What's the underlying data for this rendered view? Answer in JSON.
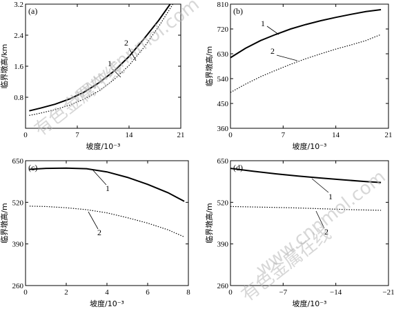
{
  "chart_data": [
    {
      "type": "line",
      "panel": "(a)",
      "xlabel": "坡度/10⁻³",
      "ylabel": "临界墩高/km",
      "xlim": [
        0,
        21
      ],
      "ylim": [
        0,
        3.2
      ],
      "xticks": [
        0,
        7,
        14,
        21
      ],
      "yticks": [
        0.8,
        1.6,
        2.4,
        3.2
      ],
      "xticklabels": [
        "0",
        "7",
        "14",
        "21"
      ],
      "yticklabels": [
        "0.8",
        "1.6",
        "2.4",
        "3.2"
      ],
      "series": [
        {
          "name": "1",
          "style": "solid",
          "x": [
            0.5,
            2,
            4,
            6,
            8,
            10,
            12,
            14,
            16,
            18,
            20
          ],
          "y": [
            0.45,
            0.52,
            0.62,
            0.76,
            0.94,
            1.18,
            1.48,
            1.85,
            2.3,
            2.78,
            3.32
          ]
        },
        {
          "name": "2",
          "style": "dotted",
          "x": [
            0.5,
            2,
            4,
            6,
            8,
            10,
            12,
            14,
            16,
            18,
            20
          ],
          "y": [
            0.33,
            0.39,
            0.48,
            0.6,
            0.76,
            0.97,
            1.26,
            1.62,
            2.08,
            2.62,
            3.22
          ]
        }
      ]
    },
    {
      "type": "line",
      "panel": "(b)",
      "xlabel": "坡度/10⁻³",
      "ylabel": "临界墩高/m",
      "xlim": [
        0,
        21
      ],
      "ylim": [
        360,
        810
      ],
      "xticks": [
        0,
        7,
        14,
        21
      ],
      "yticks": [
        360,
        450,
        540,
        630,
        720,
        810
      ],
      "xticklabels": [
        "0",
        "7",
        "14",
        "21"
      ],
      "yticklabels": [
        "360",
        "450",
        "540",
        "630",
        "720",
        "810"
      ],
      "series": [
        {
          "name": "1",
          "style": "solid",
          "x": [
            0,
            2,
            4,
            6,
            8,
            10,
            12,
            14,
            16,
            18,
            20
          ],
          "y": [
            616,
            650,
            678,
            700,
            720,
            736,
            750,
            762,
            773,
            783,
            790
          ]
        },
        {
          "name": "2",
          "style": "dotted",
          "x": [
            0,
            2,
            4,
            6,
            8,
            10,
            12,
            14,
            16,
            18,
            20
          ],
          "y": [
            490,
            520,
            547,
            570,
            592,
            612,
            630,
            647,
            662,
            678,
            700
          ]
        }
      ]
    },
    {
      "type": "line",
      "panel": "(c)",
      "xlabel": "坡度/10⁻³",
      "ylabel": "临界墩高/m",
      "xlim": [
        0,
        8
      ],
      "ylim": [
        260,
        650
      ],
      "xticks": [
        0,
        2,
        4,
        6,
        8
      ],
      "yticks": [
        260,
        390,
        520,
        650
      ],
      "xticklabels": [
        "0",
        "2",
        "4",
        "6",
        "8"
      ],
      "yticklabels": [
        "260",
        "390",
        "520",
        "650"
      ],
      "series": [
        {
          "name": "1",
          "style": "solid",
          "x": [
            0.2,
            1,
            2,
            3,
            4,
            5,
            6,
            7,
            7.8
          ],
          "y": [
            623,
            626,
            627,
            625,
            615,
            598,
            576,
            550,
            523
          ]
        },
        {
          "name": "2",
          "style": "dotted",
          "x": [
            0.2,
            1,
            2,
            3,
            4,
            5,
            6,
            7,
            7.8
          ],
          "y": [
            508,
            507,
            503,
            497,
            487,
            472,
            455,
            434,
            412
          ]
        }
      ]
    },
    {
      "type": "line",
      "panel": "(d)",
      "xlabel": "坡度/10⁻³",
      "ylabel": "临界墩高/m",
      "xlim": [
        0,
        -21
      ],
      "ylim": [
        260,
        650
      ],
      "xticks": [
        0,
        -7,
        -14,
        -21
      ],
      "yticks": [
        260,
        390,
        520,
        650
      ],
      "xticklabels": [
        "0",
        "−7",
        "−14",
        "−21"
      ],
      "yticklabels": [
        "260",
        "390",
        "520",
        "650"
      ],
      "series": [
        {
          "name": "1",
          "style": "solid",
          "x": [
            0,
            -3,
            -6,
            -9,
            -12,
            -15,
            -18,
            -20
          ],
          "y": [
            626,
            617,
            609,
            602,
            596,
            590,
            585,
            582
          ]
        },
        {
          "name": "2",
          "style": "dotted",
          "x": [
            0,
            -4,
            -8,
            -12,
            -16,
            -20
          ],
          "y": [
            507,
            505,
            503,
            500,
            497,
            495
          ]
        }
      ]
    }
  ],
  "watermarks": [
    "有色金属在线",
    "www.cnnmol.com"
  ]
}
